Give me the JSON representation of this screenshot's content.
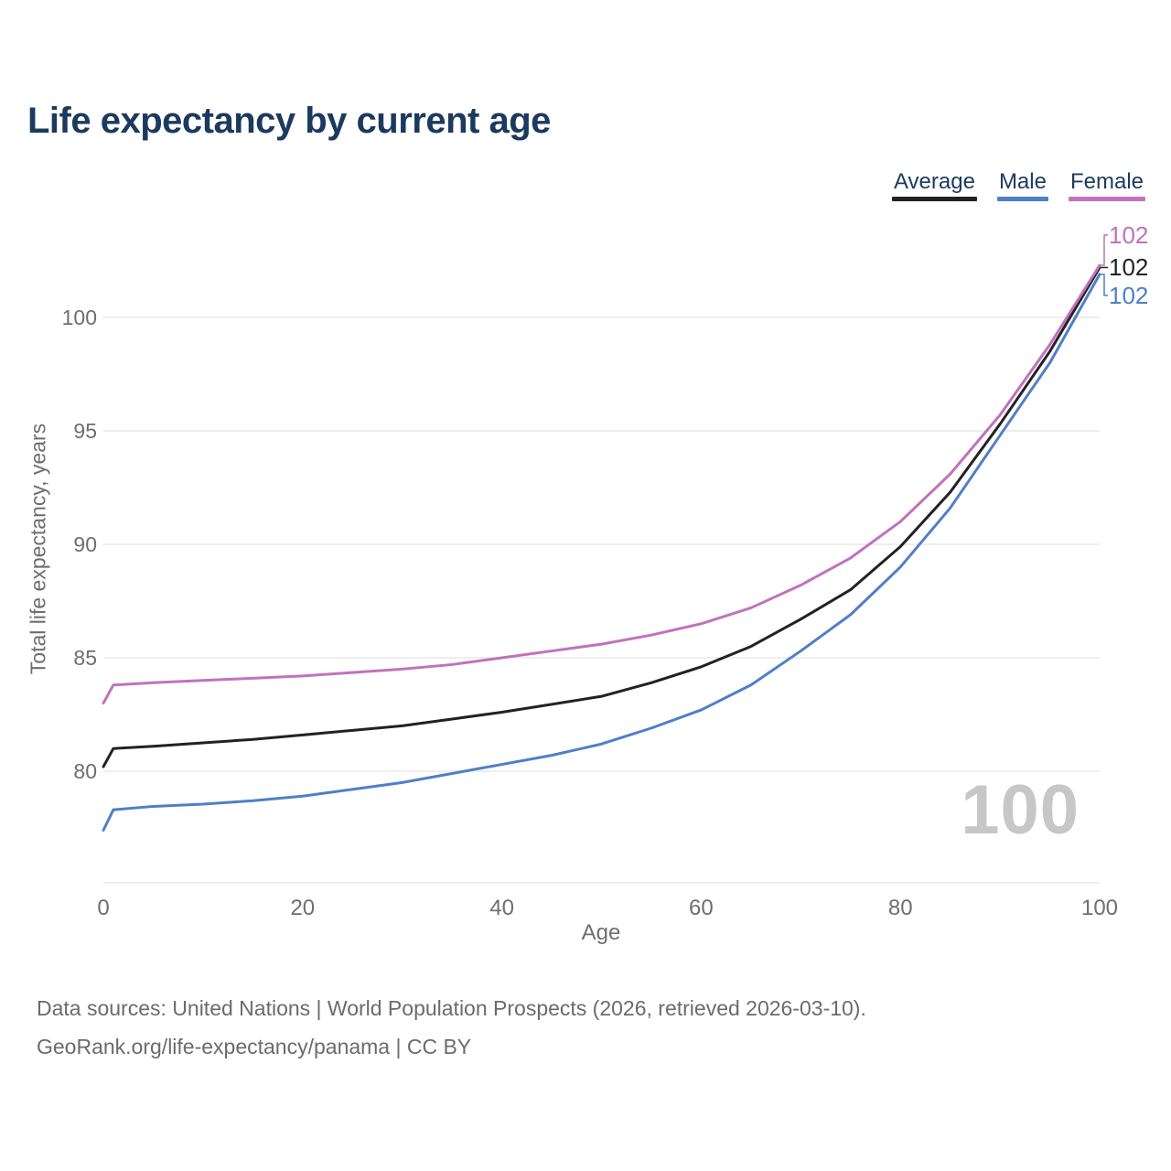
{
  "header": {
    "title": "Life expectancy by current age"
  },
  "legend": {
    "items": [
      {
        "label": "Average",
        "color": "#222222"
      },
      {
        "label": "Male",
        "color": "#4f7fc7"
      },
      {
        "label": "Female",
        "color": "#c172bc"
      }
    ]
  },
  "chart": {
    "watermark": "100",
    "grid_color": "#e9e9e9",
    "tick_color": "#6e6e6e"
  },
  "chart_data": {
    "type": "line",
    "title": "Life expectancy by current age",
    "xlabel": "Age",
    "ylabel": "Total life expectancy, years",
    "x_range": [
      0,
      100
    ],
    "y_range": [
      75.5,
      103
    ],
    "x_ticks": [
      0,
      20,
      40,
      60,
      80,
      100
    ],
    "y_ticks": [
      80,
      85,
      90,
      95,
      100
    ],
    "grid": "horizontal",
    "legend_position": "top-right",
    "x": [
      0,
      1,
      5,
      10,
      15,
      20,
      25,
      30,
      35,
      40,
      45,
      50,
      55,
      60,
      65,
      70,
      75,
      80,
      85,
      90,
      95,
      100
    ],
    "series": [
      {
        "name": "Average",
        "color": "#222222",
        "end_label": "102",
        "values": [
          80.2,
          81.0,
          81.1,
          81.25,
          81.4,
          81.6,
          81.8,
          82.0,
          82.3,
          82.6,
          82.95,
          83.3,
          83.9,
          84.6,
          85.5,
          86.7,
          88.0,
          89.9,
          92.3,
          95.3,
          98.5,
          102.2
        ]
      },
      {
        "name": "Male",
        "color": "#4f7fc7",
        "end_label": "102",
        "values": [
          77.4,
          78.3,
          78.45,
          78.55,
          78.7,
          78.9,
          79.2,
          79.5,
          79.9,
          80.3,
          80.7,
          81.2,
          81.9,
          82.7,
          83.8,
          85.3,
          86.9,
          89.0,
          91.6,
          94.8,
          98.0,
          101.9
        ]
      },
      {
        "name": "Female",
        "color": "#c172bc",
        "end_label": "102",
        "values": [
          83.0,
          83.8,
          83.9,
          84.0,
          84.1,
          84.2,
          84.35,
          84.5,
          84.7,
          85.0,
          85.3,
          85.6,
          86.0,
          86.5,
          87.2,
          88.2,
          89.4,
          91.0,
          93.1,
          95.7,
          98.8,
          102.3
        ]
      }
    ]
  },
  "footer": {
    "line1": "Data sources: United Nations | World Population Prospects (2026, retrieved 2026-03-10).",
    "line2": "GeoRank.org/life-expectancy/panama | CC BY"
  }
}
